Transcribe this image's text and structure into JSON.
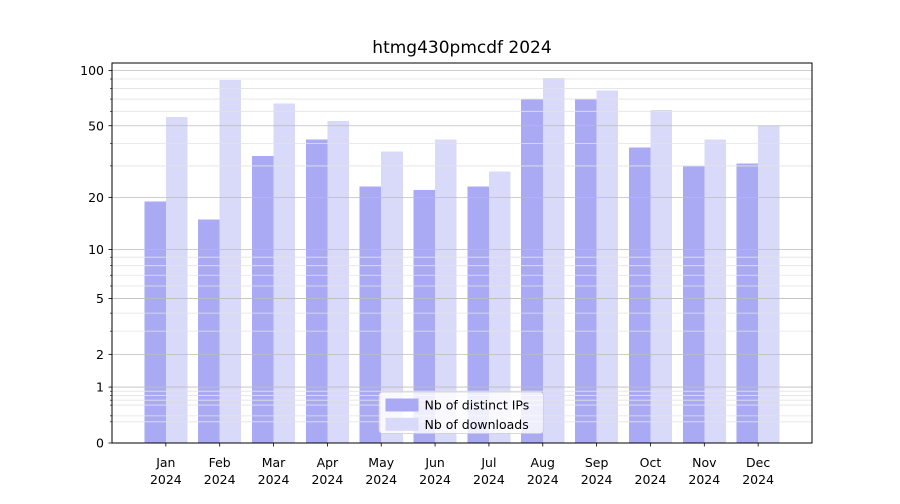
{
  "chart_data": {
    "type": "bar",
    "title": "htmg430pmcdf 2024",
    "x": {
      "months": [
        "Jan",
        "Feb",
        "Mar",
        "Apr",
        "May",
        "Jun",
        "Jul",
        "Aug",
        "Sep",
        "Oct",
        "Nov",
        "Dec"
      ],
      "year": "2024"
    },
    "categories": [
      "Jan 2024",
      "Feb 2024",
      "Mar 2024",
      "Apr 2024",
      "May 2024",
      "Jun 2024",
      "Jul 2024",
      "Aug 2024",
      "Sep 2024",
      "Oct 2024",
      "Nov 2024",
      "Dec 2024"
    ],
    "series": [
      {
        "name": "Nb of distinct IPs",
        "color": "#aaaaf4",
        "values": [
          19,
          15,
          34,
          42,
          23,
          22,
          23,
          70,
          70,
          38,
          30,
          31
        ]
      },
      {
        "name": "Nb of downloads",
        "color": "#d9d9f9",
        "values": [
          56,
          89,
          66,
          53,
          36,
          42,
          28,
          91,
          78,
          61,
          42,
          50
        ]
      }
    ],
    "y_axis": {
      "scale": "log1p",
      "major_ticks": [
        0,
        1,
        2,
        5,
        10,
        20,
        50,
        100
      ],
      "minor_ticks": [
        0.3,
        0.4,
        0.6,
        0.7,
        0.8,
        0.9,
        3,
        4,
        6,
        7,
        8,
        9,
        30,
        40,
        60,
        70,
        80,
        90
      ],
      "max": 110
    },
    "grid": true,
    "legend_position": "lower center",
    "colors": {
      "background": "#ffffff",
      "grid_major": "#bdbdbd",
      "grid_minor": "#e3e3e3",
      "spine": "#000000",
      "legend_border": "#cccccc",
      "legend_fill_opacity": "0.8"
    }
  }
}
